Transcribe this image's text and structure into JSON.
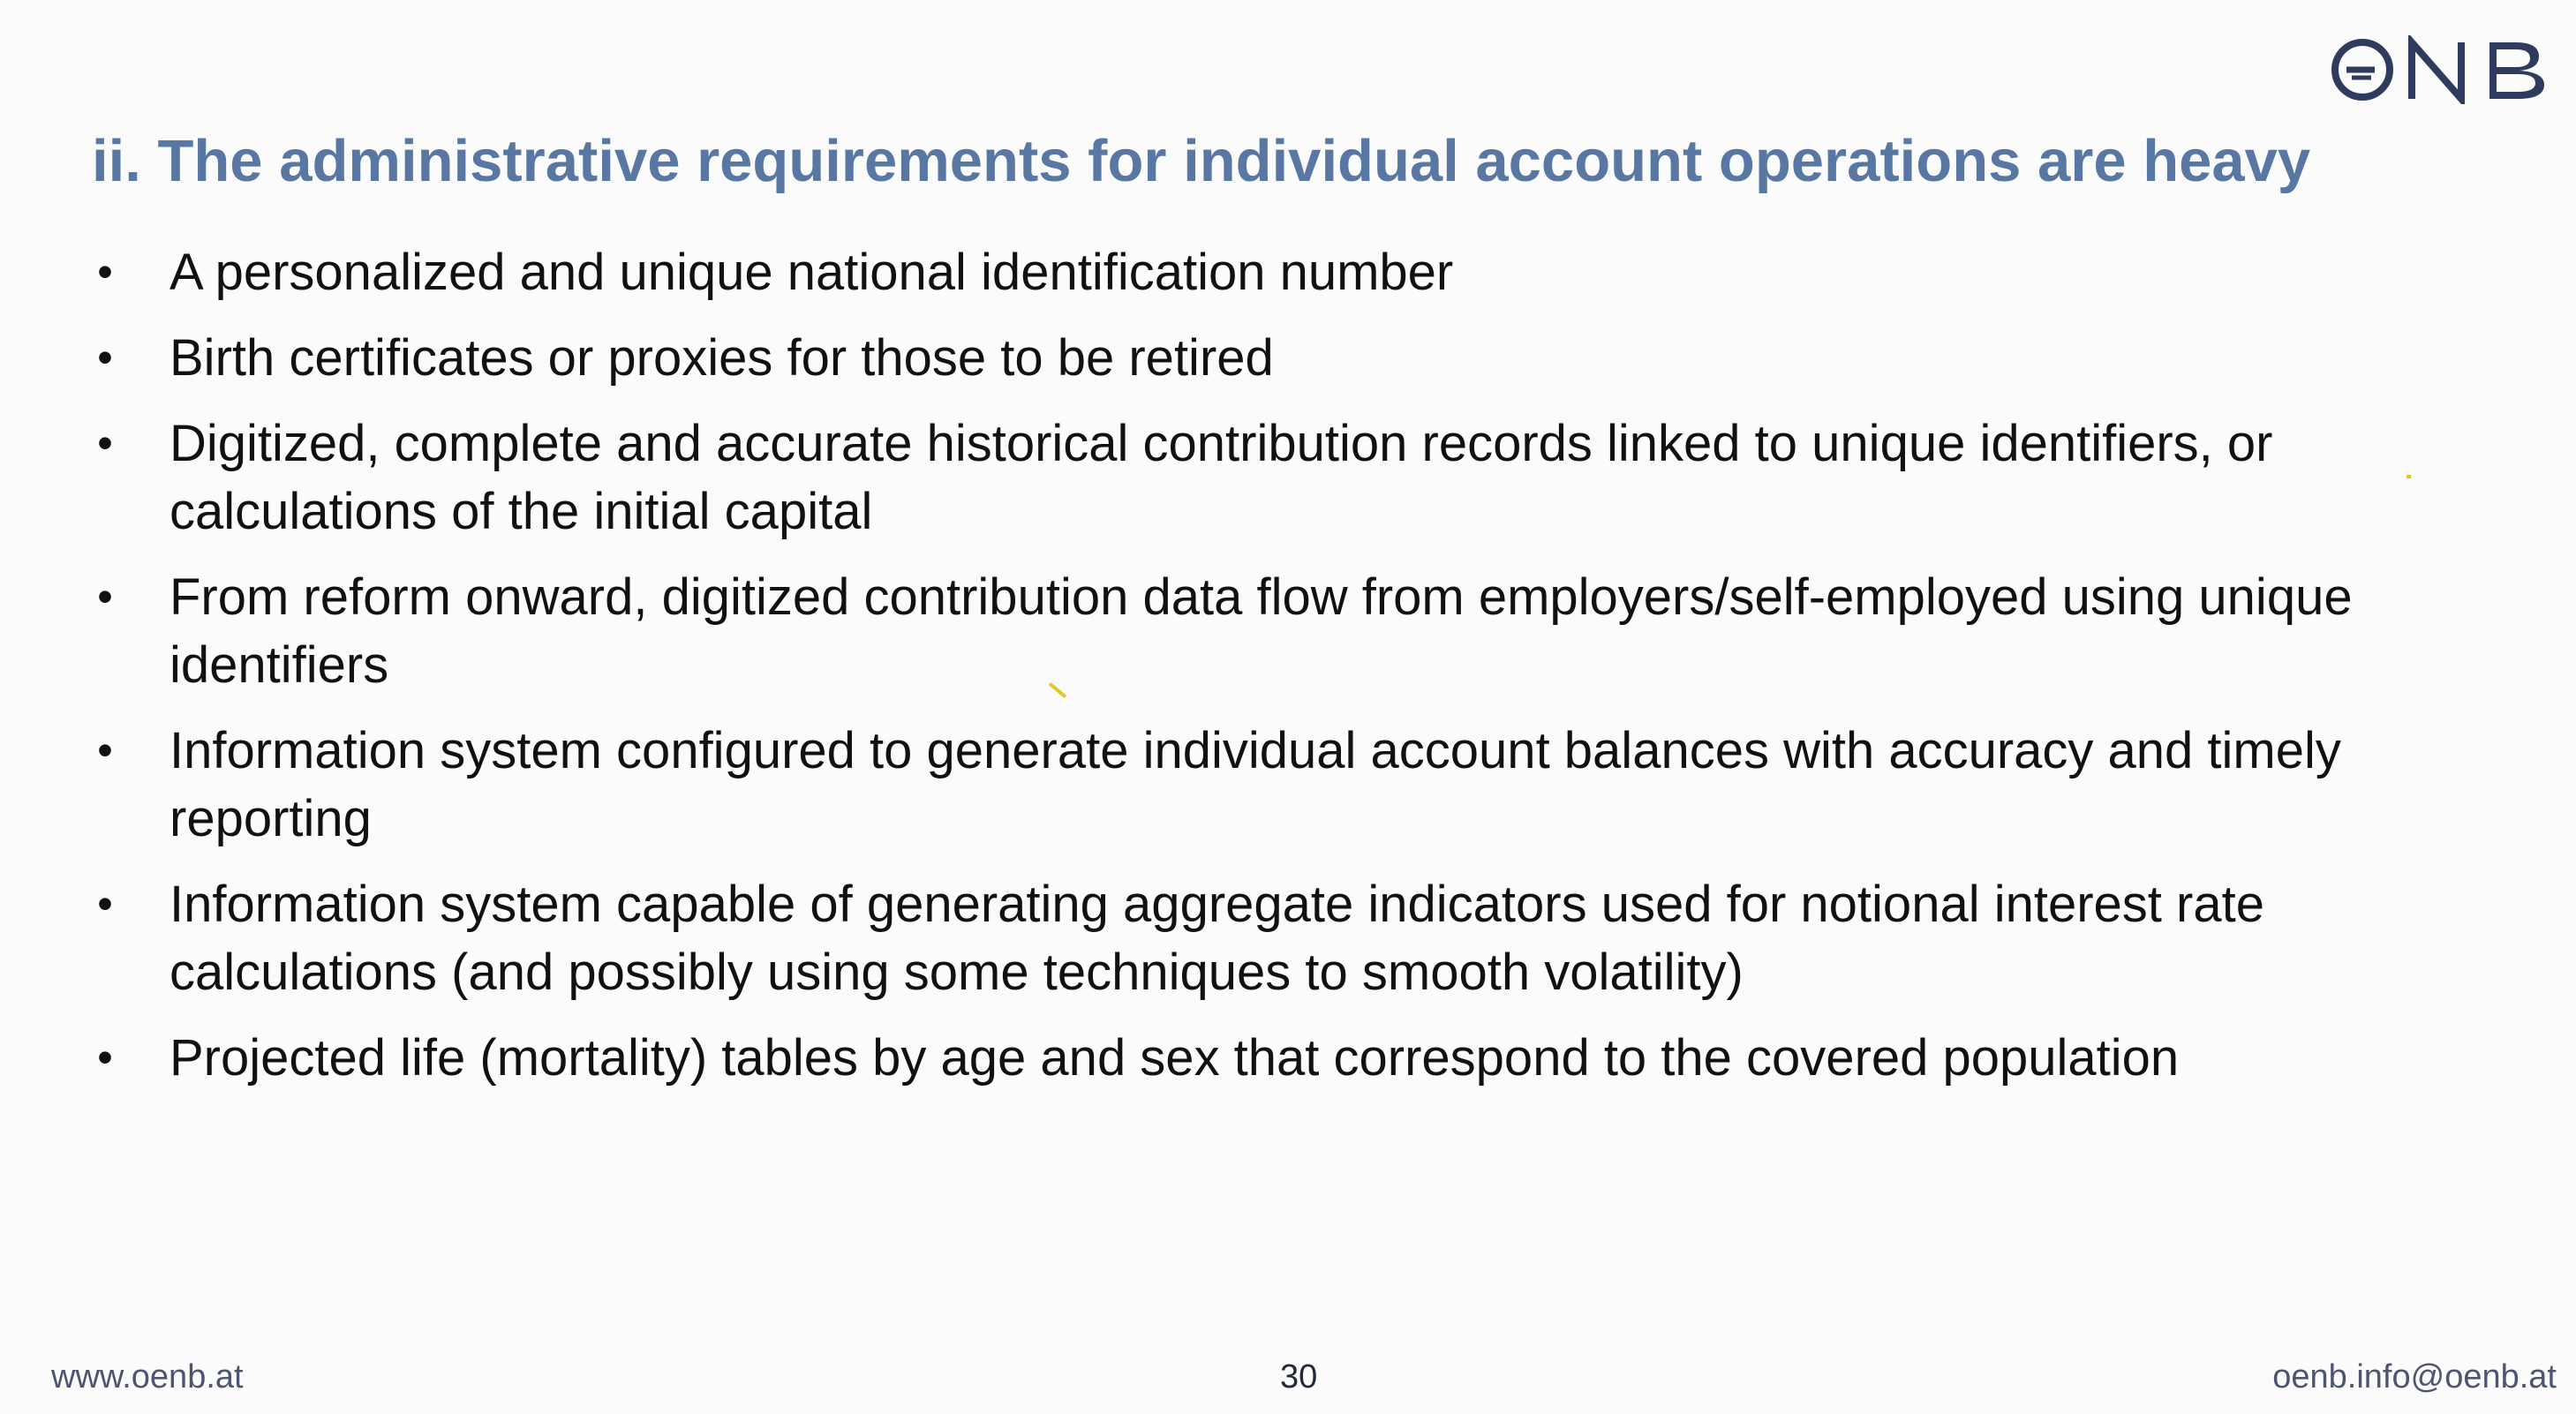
{
  "header": {
    "logo_text": "ONB",
    "title": "ii. The administrative requirements for individual account operations are heavy"
  },
  "bullets": [
    "A personalized and unique national identification number",
    "Birth certificates or proxies for those to be retired",
    "Digitized, complete and accurate historical contribution records linked to unique identifiers, or calculations of the initial capital",
    "From reform onward, digitized contribution data flow from employers/self-employed using unique identifiers",
    "Information system configured to generate individual account balances with accuracy and timely reporting",
    "Information system capable of generating aggregate indicators used for notional interest rate calculations (and possibly using some techniques to smooth volatility)",
    "Projected life (mortality) tables by age and sex that correspond to the covered population"
  ],
  "footer": {
    "website": "www.oenb.at",
    "page_number": "30",
    "email": "oenb.info@oenb.at"
  },
  "colors": {
    "title": "#5878a3",
    "logo": "#2f3b5e",
    "background": "#fbfbfc"
  }
}
